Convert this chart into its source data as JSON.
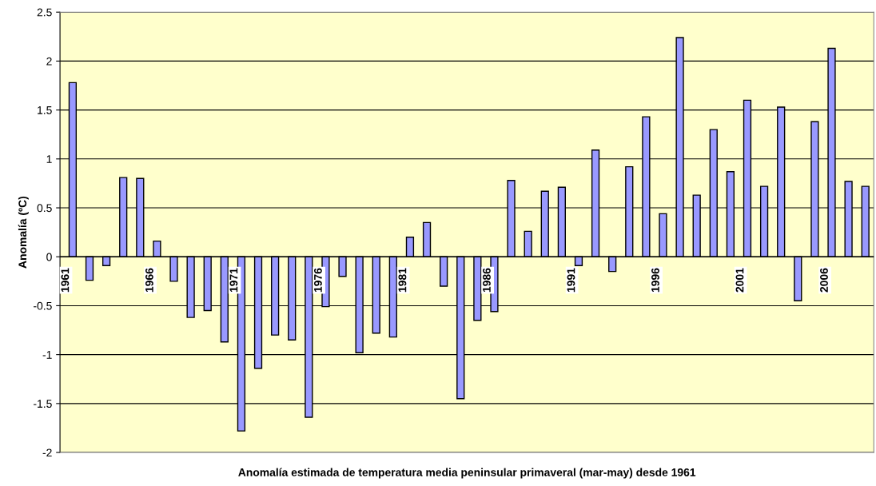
{
  "chart_data": {
    "type": "bar",
    "xlabel": "Anomalía estimada de temperatura media peninsular primaveral (mar-may) desde 1961",
    "ylabel": "Anomalía (ºC)",
    "categories": [
      "1961",
      null,
      null,
      null,
      null,
      "1966",
      null,
      null,
      null,
      null,
      "1971",
      null,
      null,
      null,
      null,
      "1976",
      null,
      null,
      null,
      null,
      "1981",
      null,
      null,
      null,
      null,
      "1986",
      null,
      null,
      null,
      null,
      "1991",
      null,
      null,
      null,
      null,
      "1996",
      null,
      null,
      null,
      null,
      "2001",
      null,
      null,
      null,
      null,
      "2006",
      null,
      null
    ],
    "values": [
      1.78,
      -0.24,
      -0.09,
      0.81,
      0.8,
      0.16,
      -0.25,
      -0.62,
      -0.55,
      -0.87,
      -1.78,
      -1.14,
      -0.8,
      -0.85,
      -1.64,
      -0.51,
      -0.2,
      -0.98,
      -0.78,
      -0.82,
      0.2,
      0.35,
      -0.3,
      -1.45,
      -0.65,
      -0.56,
      0.78,
      0.26,
      0.67,
      0.71,
      -0.09,
      1.09,
      -0.15,
      0.92,
      1.43,
      0.44,
      2.24,
      0.63,
      1.3,
      0.87,
      1.6,
      0.72,
      1.53,
      -0.45,
      1.38,
      2.13,
      0.77,
      0.72
    ],
    "color": "#9999ff",
    "ylim": [
      -2,
      2.5
    ],
    "yticks": [
      -2,
      -1.5,
      -1,
      -0.5,
      0,
      0.5,
      1,
      1.5,
      2,
      2.5
    ],
    "grid": "y"
  }
}
